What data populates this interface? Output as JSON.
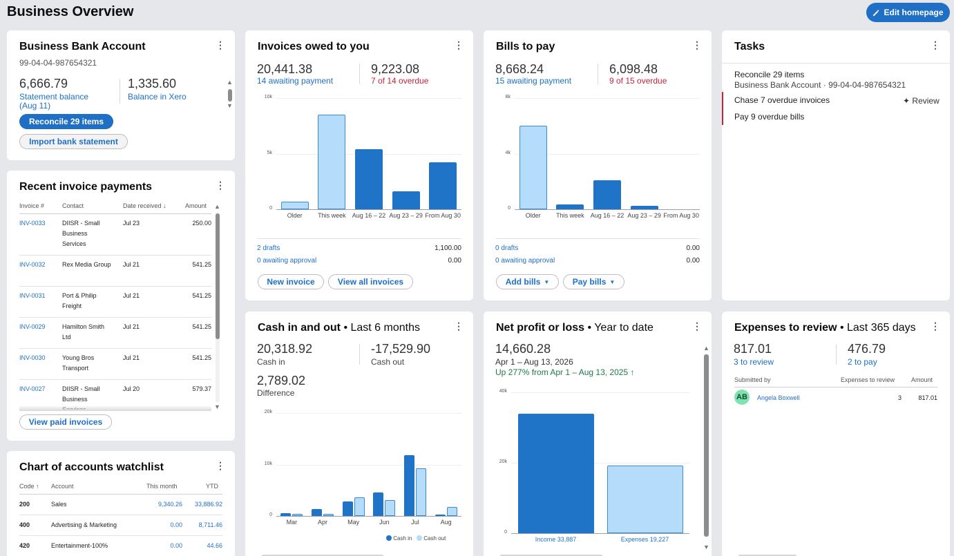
{
  "header": {
    "title": "Business Overview",
    "edit_label": "Edit homepage"
  },
  "bank": {
    "title": "Business Bank Account",
    "account": "99-04-04-987654321",
    "statement_value": "6,666.79",
    "statement_label": "Statement balance",
    "statement_date": "(Aug 11)",
    "xero_value": "1,335.60",
    "xero_label": "Balance in Xero",
    "reconcile_label": "Reconcile 29 items",
    "import_label": "Import bank statement"
  },
  "invoices": {
    "title": "Invoices owed to you",
    "awaiting_value": "20,441.38",
    "awaiting_label": "14 awaiting payment",
    "overdue_value": "9,223.08",
    "overdue_label": "7 of 14 overdue",
    "drafts_label": "2 drafts",
    "drafts_value": "1,100.00",
    "approval_label": "0 awaiting approval",
    "approval_value": "0.00",
    "new_label": "New invoice",
    "view_all_label": "View all invoices"
  },
  "bills": {
    "title": "Bills to pay",
    "awaiting_value": "8,668.24",
    "awaiting_label": "15 awaiting payment",
    "overdue_value": "6,098.48",
    "overdue_label": "9 of 15 overdue",
    "drafts_label": "0 drafts",
    "drafts_value": "0.00",
    "approval_label": "0 awaiting approval",
    "approval_value": "0.00",
    "add_label": "Add bills",
    "pay_label": "Pay bills"
  },
  "tasks": {
    "title": "Tasks",
    "items": [
      {
        "title": "Reconcile 29 items",
        "sub": "Business Bank Account · 99-04-04-987654321"
      },
      {
        "title": "Chase 7 overdue invoices",
        "action": "Review"
      },
      {
        "title": "Pay 9 overdue bills"
      }
    ]
  },
  "payments": {
    "title": "Recent invoice payments",
    "headers": [
      "Invoice #",
      "Contact",
      "Date received",
      "Amount"
    ],
    "rows": [
      {
        "invoice": "INV-0033",
        "contact": "DIISR - Small Business Services",
        "date": "Jul 23",
        "amount": "250.00"
      },
      {
        "invoice": "INV-0032",
        "contact": "Rex Media Group",
        "date": "Jul 21",
        "amount": "541.25"
      },
      {
        "invoice": "INV-0031",
        "contact": "Port & Philip Freight",
        "date": "Jul 21",
        "amount": "541.25"
      },
      {
        "invoice": "INV-0029",
        "contact": "Hamilton Smith Ltd",
        "date": "Jul 21",
        "amount": "541.25"
      },
      {
        "invoice": "INV-0030",
        "contact": "Young Bros Transport",
        "date": "Jul 21",
        "amount": "541.25"
      },
      {
        "invoice": "INV-0027",
        "contact": "DIISR - Small Business Services",
        "date": "Jul 20",
        "amount": "579.37"
      }
    ],
    "view_paid_label": "View paid invoices"
  },
  "watchlist": {
    "title": "Chart of accounts watchlist",
    "headers": [
      "Code",
      "Account",
      "This month",
      "YTD"
    ],
    "rows": [
      {
        "code": "200",
        "account": "Sales",
        "month": "9,340.26",
        "ytd": "33,886.92"
      },
      {
        "code": "400",
        "account": "Advertising & Marketing",
        "month": "0.00",
        "ytd": "8,711.46"
      },
      {
        "code": "420",
        "account": "Entertainment-100%",
        "month": "0.00",
        "ytd": "44.66"
      }
    ]
  },
  "cash": {
    "title": "Cash in and out",
    "period": " • Last 6 months",
    "in_value": "20,318.92",
    "in_label": "Cash in",
    "out_value": "-17,529.90",
    "out_label": "Cash out",
    "diff_value": "2,789.02",
    "diff_label": "Difference"
  },
  "profit": {
    "title": "Net profit or loss",
    "period": " • Year to date",
    "value": "14,660.28",
    "range": "Apr 1 – Aug 13, 2026",
    "change": "Up 277% from Apr 1 – Aug 13, 2025"
  },
  "expenses": {
    "title": "Expenses to review",
    "period": " • Last 365 days",
    "review_value": "817.01",
    "review_label": "3 to review",
    "pay_value": "476.79",
    "pay_label": "2 to pay",
    "headers": [
      "Submitted by",
      "Expenses to review",
      "Amount"
    ],
    "rows": [
      {
        "initials": "AB",
        "name": "Angela Boxwell",
        "count": "3",
        "amount": "817.01"
      }
    ]
  },
  "colors": {
    "accent": "#1f6fc5",
    "bar_dark": "#1f74c7",
    "bar_light": "#b5dcfa",
    "overdue": "#c8223b",
    "up": "#1e7a45"
  },
  "chart_data": [
    {
      "type": "bar",
      "categories": [
        "Older",
        "This week",
        "Aug 16 – 22",
        "Aug 23 – 29",
        "From Aug 30"
      ],
      "values": [
        700,
        8500,
        5400,
        1600,
        4200
      ],
      "yticks": [
        "0",
        "5k",
        "10k"
      ],
      "ylim": [
        0,
        10000
      ]
    },
    {
      "type": "bar",
      "categories": [
        "Older",
        "This week",
        "Aug 16 – 22",
        "Aug 23 – 29",
        "From Aug 30"
      ],
      "values": [
        6000,
        350,
        2100,
        250,
        0
      ],
      "yticks": [
        "0",
        "4k",
        "8k"
      ],
      "ylim": [
        0,
        8000
      ]
    },
    {
      "type": "bar",
      "categories": [
        "Mar",
        "Apr",
        "May",
        "Jun",
        "Jul",
        "Aug"
      ],
      "series": [
        {
          "name": "Cash in",
          "values": [
            600,
            1300,
            2800,
            4500,
            11800,
            0
          ]
        },
        {
          "name": "Cash out",
          "values": [
            400,
            400,
            3600,
            3100,
            9300,
            1800
          ]
        }
      ],
      "yticks": [
        "0",
        "10k",
        "20k"
      ],
      "ylim": [
        0,
        20000
      ]
    },
    {
      "type": "bar",
      "categories": [
        "Income 33,887",
        "Expenses 19,227"
      ],
      "values": [
        33887,
        19227
      ],
      "yticks": [
        "0",
        "20k",
        "40k"
      ],
      "ylim": [
        0,
        40000
      ]
    }
  ]
}
